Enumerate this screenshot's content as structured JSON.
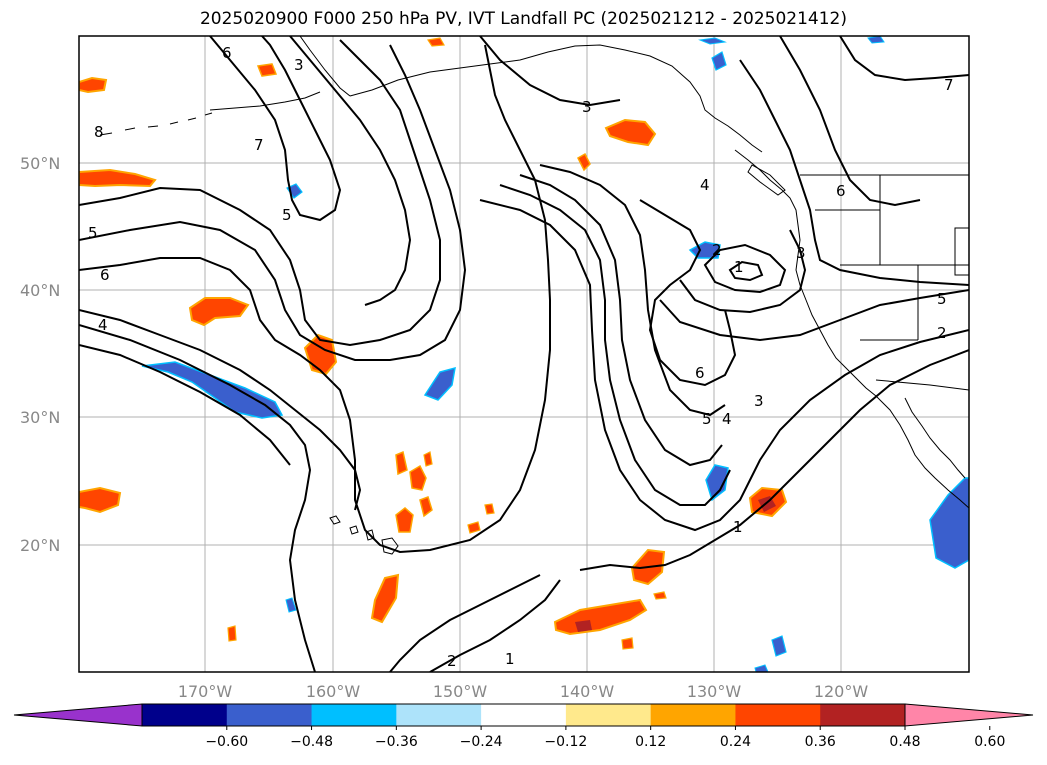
{
  "title": "2025020900 F000 250 hPa PV, IVT Landfall PC (2025021212 - 2025021412)",
  "lat_labels": [
    "50°N",
    "40°N",
    "30°N",
    "20°N"
  ],
  "lon_labels": [
    "170°W",
    "160°W",
    "150°W",
    "140°W",
    "130°W",
    "120°W"
  ],
  "colorbar": {
    "tick_labels": [
      "−0.60",
      "−0.48",
      "−0.36",
      "−0.24",
      "−0.12",
      "0.12",
      "0.24",
      "0.36",
      "0.48",
      "0.60"
    ],
    "colors": [
      "#9932CC",
      "#00008B",
      "#3A5FCD",
      "#00BFFF",
      "#ADE3FA",
      "#FFFFFF",
      "#FFE98C",
      "#FFA500",
      "#FF4500",
      "#B22222",
      "#FF85A8"
    ]
  },
  "contour_labels": [
    "6",
    "3",
    "8",
    "7",
    "5",
    "5",
    "6",
    "4",
    "3",
    "4",
    "2",
    "1",
    "3",
    "6",
    "7",
    "5",
    "2",
    "6",
    "5",
    "4",
    "3",
    "1",
    "2",
    "1"
  ]
}
